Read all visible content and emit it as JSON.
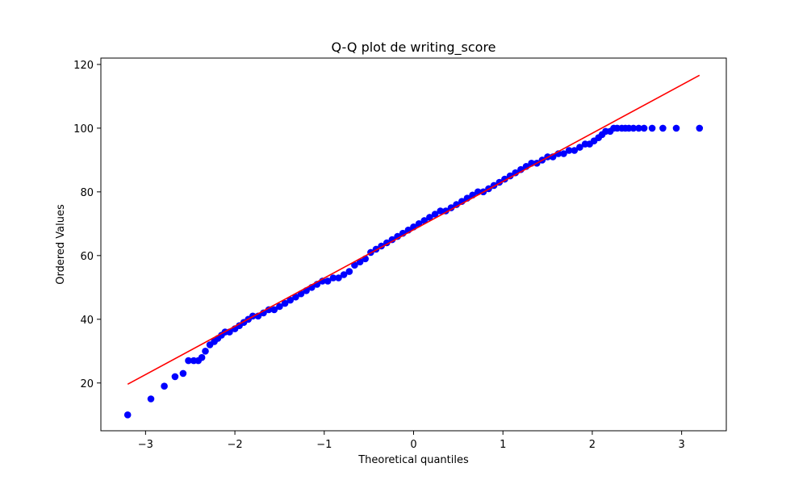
{
  "chart_data": {
    "type": "scatter",
    "title": "Q-Q plot de writing_score",
    "xlabel": "Theoretical quantiles",
    "ylabel": "Ordered Values",
    "xlim": [
      -3.5,
      3.5
    ],
    "ylim": [
      5,
      122
    ],
    "xticks": [
      -3,
      -2,
      -1,
      0,
      1,
      2,
      3
    ],
    "yticks": [
      20,
      40,
      60,
      80,
      100,
      120
    ],
    "grid": false,
    "colors": {
      "points": "#0000ff",
      "fit_line": "#ff0000"
    },
    "fit_line": {
      "x": [
        -3.2,
        3.2
      ],
      "y": [
        19.6,
        116.6
      ]
    },
    "series": [
      {
        "x": [
          -3.2,
          -2.94,
          -2.79,
          -2.67,
          -2.58,
          -2.52,
          -2.46,
          -2.41,
          -2.37,
          -2.33,
          -2.28,
          -2.23,
          -2.19,
          -2.15,
          -2.11,
          -2.06,
          -2.0,
          -1.95,
          -1.9,
          -1.85,
          -1.8,
          -1.74,
          -1.68,
          -1.62,
          -1.56,
          -1.5,
          -1.44,
          -1.38,
          -1.32,
          -1.26,
          -1.2,
          -1.14,
          -1.08,
          -1.02,
          -0.96,
          -0.9,
          -0.84,
          -0.78,
          -0.72,
          -0.66,
          -0.6,
          -0.54,
          -0.48,
          -0.42,
          -0.36,
          -0.3,
          -0.24,
          -0.18,
          -0.12,
          -0.06,
          0.0,
          0.06,
          0.12,
          0.18,
          0.24,
          0.3,
          0.36,
          0.42,
          0.48,
          0.54,
          0.6,
          0.66,
          0.72,
          0.78,
          0.84,
          0.9,
          0.96,
          1.02,
          1.08,
          1.14,
          1.2,
          1.26,
          1.32,
          1.38,
          1.44,
          1.5,
          1.56,
          1.62,
          1.68,
          1.74,
          1.8,
          1.86,
          1.92,
          1.97,
          2.02,
          2.07,
          2.11,
          2.15,
          2.2,
          2.24,
          2.28,
          2.33,
          2.37,
          2.41,
          2.46,
          2.52,
          2.58,
          2.67,
          2.79,
          2.94,
          3.2
        ],
        "y": [
          10,
          15,
          19,
          22,
          23,
          27,
          27,
          27,
          28,
          30,
          32,
          33,
          34,
          35,
          36,
          36,
          37,
          38,
          39,
          40,
          41,
          41,
          42,
          43,
          43,
          44,
          45,
          46,
          47,
          48,
          49,
          50,
          51,
          52,
          52,
          53,
          53,
          54,
          55,
          57,
          58,
          59,
          61,
          62,
          63,
          64,
          65,
          66,
          67,
          68,
          69,
          70,
          71,
          72,
          73,
          74,
          74,
          75,
          76,
          77,
          78,
          79,
          80,
          80,
          81,
          82,
          83,
          84,
          85,
          86,
          87,
          88,
          89,
          89,
          90,
          91,
          91,
          92,
          92,
          93,
          93,
          94,
          95,
          95,
          96,
          97,
          98,
          99,
          99,
          100,
          100,
          100,
          100,
          100,
          100,
          100,
          100,
          100,
          100,
          100,
          100
        ]
      }
    ]
  }
}
